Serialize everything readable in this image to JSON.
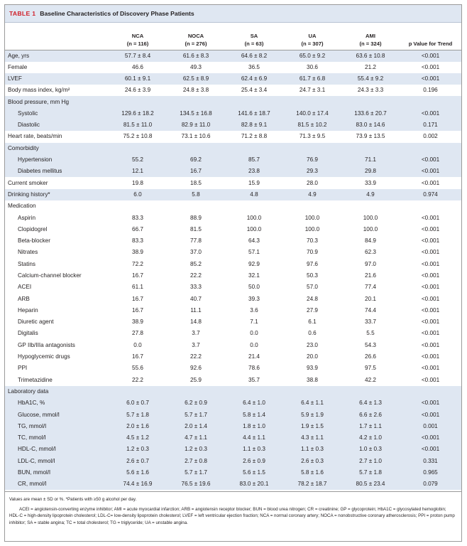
{
  "table": {
    "label": "TABLE 1",
    "title": "Baseline Characteristics of Discovery Phase Patients",
    "columns": [
      {
        "name": "",
        "n": ""
      },
      {
        "name": "NCA",
        "n": "(n = 116)"
      },
      {
        "name": "NOCA",
        "n": "(n = 276)"
      },
      {
        "name": "SA",
        "n": "(n = 63)"
      },
      {
        "name": "UA",
        "n": "(n = 307)"
      },
      {
        "name": "AMI",
        "n": "(n = 324)"
      },
      {
        "name": "p Value for Trend",
        "n": ""
      }
    ],
    "rows": [
      {
        "label": "Age, yrs",
        "indent": false,
        "shade": true,
        "cells": [
          "57.7 ± 8.4",
          "61.6 ± 8.3",
          "64.6 ± 8.2",
          "65.0 ± 9.2",
          "63.6 ± 10.8",
          "<0.001"
        ]
      },
      {
        "label": "Female",
        "indent": false,
        "shade": false,
        "cells": [
          "46.6",
          "49.3",
          "36.5",
          "30.6",
          "21.2",
          "<0.001"
        ]
      },
      {
        "label": "LVEF",
        "indent": false,
        "shade": true,
        "cells": [
          "60.1 ± 9.1",
          "62.5 ± 8.9",
          "62.4 ± 6.9",
          "61.7 ± 6.8",
          "55.4 ± 9.2",
          "<0.001"
        ]
      },
      {
        "label": "Body mass index, kg/m²",
        "indent": false,
        "shade": false,
        "cells": [
          "24.6 ± 3.9",
          "24.8 ± 3.8",
          "25.4 ± 3.4",
          "24.7 ± 3.1",
          "24.3 ± 3.3",
          "0.196"
        ]
      },
      {
        "label": "Blood pressure, mm Hg",
        "indent": false,
        "shade": true,
        "cells": [
          "",
          "",
          "",
          "",
          "",
          ""
        ]
      },
      {
        "label": "Systolic",
        "indent": true,
        "shade": true,
        "cells": [
          "129.6 ± 18.2",
          "134.5 ± 16.8",
          "141.6 ± 18.7",
          "140.0 ± 17.4",
          "133.6 ± 20.7",
          "<0.001"
        ]
      },
      {
        "label": "Diastolic",
        "indent": true,
        "shade": true,
        "cells": [
          "81.5 ± 11.0",
          "82.9 ± 11.0",
          "82.8 ± 9.1",
          "81.5 ± 10.2",
          "83.0 ± 14.6",
          "0.171"
        ]
      },
      {
        "label": "Heart rate, beats/min",
        "indent": false,
        "shade": false,
        "cells": [
          "75.2 ± 10.8",
          "73.1 ± 10.6",
          "71.2 ± 8.8",
          "71.3 ± 9.5",
          "73.9 ± 13.5",
          "0.002"
        ]
      },
      {
        "label": "Comorbidity",
        "indent": false,
        "shade": true,
        "cells": [
          "",
          "",
          "",
          "",
          "",
          ""
        ]
      },
      {
        "label": "Hypertension",
        "indent": true,
        "shade": true,
        "cells": [
          "55.2",
          "69.2",
          "85.7",
          "76.9",
          "71.1",
          "<0.001"
        ]
      },
      {
        "label": "Diabetes mellitus",
        "indent": true,
        "shade": true,
        "cells": [
          "12.1",
          "16.7",
          "23.8",
          "29.3",
          "29.8",
          "<0.001"
        ]
      },
      {
        "label": "Current smoker",
        "indent": false,
        "shade": false,
        "cells": [
          "19.8",
          "18.5",
          "15.9",
          "28.0",
          "33.9",
          "<0.001"
        ]
      },
      {
        "label": "Drinking history*",
        "indent": false,
        "shade": true,
        "cells": [
          "6.0",
          "5.8",
          "4.8",
          "4.9",
          "4.9",
          "0.974"
        ]
      },
      {
        "label": "Medication",
        "indent": false,
        "shade": false,
        "cells": [
          "",
          "",
          "",
          "",
          "",
          ""
        ]
      },
      {
        "label": "Aspirin",
        "indent": true,
        "shade": false,
        "cells": [
          "83.3",
          "88.9",
          "100.0",
          "100.0",
          "100.0",
          "<0.001"
        ]
      },
      {
        "label": "Clopidogrel",
        "indent": true,
        "shade": false,
        "cells": [
          "66.7",
          "81.5",
          "100.0",
          "100.0",
          "100.0",
          "<0.001"
        ]
      },
      {
        "label": "Beta-blocker",
        "indent": true,
        "shade": false,
        "cells": [
          "83.3",
          "77.8",
          "64.3",
          "70.3",
          "84.9",
          "<0.001"
        ]
      },
      {
        "label": "Nitrates",
        "indent": true,
        "shade": false,
        "cells": [
          "38.9",
          "37.0",
          "57.1",
          "70.9",
          "62.3",
          "<0.001"
        ]
      },
      {
        "label": "Statins",
        "indent": true,
        "shade": false,
        "cells": [
          "72.2",
          "85.2",
          "92.9",
          "97.6",
          "97.0",
          "<0.001"
        ]
      },
      {
        "label": "Calcium-channel blocker",
        "indent": true,
        "shade": false,
        "cells": [
          "16.7",
          "22.2",
          "32.1",
          "50.3",
          "21.6",
          "<0.001"
        ]
      },
      {
        "label": "ACEI",
        "indent": true,
        "shade": false,
        "cells": [
          "61.1",
          "33.3",
          "50.0",
          "57.0",
          "77.4",
          "<0.001"
        ]
      },
      {
        "label": "ARB",
        "indent": true,
        "shade": false,
        "cells": [
          "16.7",
          "40.7",
          "39.3",
          "24.8",
          "20.1",
          "<0.001"
        ]
      },
      {
        "label": "Heparin",
        "indent": true,
        "shade": false,
        "cells": [
          "16.7",
          "11.1",
          "3.6",
          "27.9",
          "74.4",
          "<0.001"
        ]
      },
      {
        "label": "Diuretic agent",
        "indent": true,
        "shade": false,
        "cells": [
          "38.9",
          "14.8",
          "7.1",
          "6.1",
          "33.7",
          "<0.001"
        ]
      },
      {
        "label": "Digitalis",
        "indent": true,
        "shade": false,
        "cells": [
          "27.8",
          "3.7",
          "0.0",
          "0.6",
          "5.5",
          "<0.001"
        ]
      },
      {
        "label": "GP IIb/IIIa antagonists",
        "indent": true,
        "shade": false,
        "cells": [
          "0.0",
          "3.7",
          "0.0",
          "23.0",
          "54.3",
          "<0.001"
        ]
      },
      {
        "label": "Hypoglycemic drugs",
        "indent": true,
        "shade": false,
        "cells": [
          "16.7",
          "22.2",
          "21.4",
          "20.0",
          "26.6",
          "<0.001"
        ]
      },
      {
        "label": "PPI",
        "indent": true,
        "shade": false,
        "cells": [
          "55.6",
          "92.6",
          "78.6",
          "93.9",
          "97.5",
          "<0.001"
        ]
      },
      {
        "label": "Trimetazidine",
        "indent": true,
        "shade": false,
        "cells": [
          "22.2",
          "25.9",
          "35.7",
          "38.8",
          "42.2",
          "<0.001"
        ]
      },
      {
        "label": "Laboratory data",
        "indent": false,
        "shade": true,
        "cells": [
          "",
          "",
          "",
          "",
          "",
          ""
        ]
      },
      {
        "label": "HbA1C, %",
        "indent": true,
        "shade": true,
        "cells": [
          "6.0 ± 0.7",
          "6.2 ± 0.9",
          "6.4 ± 1.0",
          "6.4 ± 1.1",
          "6.4 ± 1.3",
          "<0.001"
        ]
      },
      {
        "label": "Glucose, mmol/l",
        "indent": true,
        "shade": true,
        "cells": [
          "5.7 ± 1.8",
          "5.7 ± 1.7",
          "5.8 ± 1.4",
          "5.9 ± 1.9",
          "6.6 ± 2.6",
          "<0.001"
        ]
      },
      {
        "label": "TG, mmol/l",
        "indent": true,
        "shade": true,
        "cells": [
          "2.0 ± 1.6",
          "2.0 ± 1.4",
          "1.8 ± 1.0",
          "1.9 ± 1.5",
          "1.7 ± 1.1",
          "0.001"
        ]
      },
      {
        "label": "TC, mmol/l",
        "indent": true,
        "shade": true,
        "cells": [
          "4.5 ± 1.2",
          "4.7 ± 1.1",
          "4.4 ± 1.1",
          "4.3 ± 1.1",
          "4.2 ± 1.0",
          "<0.001"
        ]
      },
      {
        "label": "HDL-C, mmol/l",
        "indent": true,
        "shade": true,
        "cells": [
          "1.2 ± 0.3",
          "1.2 ± 0.3",
          "1.1 ± 0.3",
          "1.1 ± 0.3",
          "1.0 ± 0.3",
          "<0.001"
        ]
      },
      {
        "label": "LDL-C, mmol/l",
        "indent": true,
        "shade": true,
        "cells": [
          "2.6 ± 0.7",
          "2.7 ± 0.8",
          "2.6 ± 0.9",
          "2.6 ± 0.3",
          "2.7 ± 1.0",
          "0.331"
        ]
      },
      {
        "label": "BUN, mmol/l",
        "indent": true,
        "shade": true,
        "cells": [
          "5.6 ± 1.6",
          "5.7 ± 1.7",
          "5.6 ± 1.5",
          "5.8 ± 1.6",
          "5.7 ± 1.8",
          "0.965"
        ]
      },
      {
        "label": "CR, mmol/l",
        "indent": true,
        "shade": true,
        "cells": [
          "74.4 ± 16.9",
          "76.5 ± 19.6",
          "83.0 ± 20.1",
          "78.2 ± 18.7",
          "80.5 ± 23.4",
          "0.079"
        ]
      }
    ]
  },
  "footer": {
    "note": "Values are mean ± SD or %. *Patients with ≥50 g alcohol per day.",
    "abbreviations": "ACEI = angiotensin-converting enzyme inhibitor; AMI = acute myocardial infarction; ARB = angiotensin receptor blocker; BUN = blood urea nitrogen; CR = creatinine; GP = glycoprotein; HbA1C = glycosylated hemoglobin; HDL-C = high-density lipoprotein cholesterol; LDL-C= low-density lipoprotein cholesterol; LVEF = left ventricular ejection fraction; NCA = normal coronary artery; NOCA = nonobstructive coronary atherosclerosis; PPI = proton pump inhibitor; SA = stable angina; TC = total cholesterol; TG = triglyceride; UA = unstable angina."
  },
  "colors": {
    "label_red": "#d0202a",
    "shade_blue": "#dfe7f2"
  }
}
